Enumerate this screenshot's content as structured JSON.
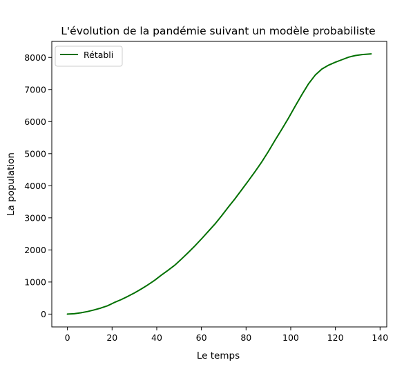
{
  "chart_data": {
    "type": "line",
    "title": "L'évolution de la pandémie suivant un modèle probabiliste",
    "xlabel": "Le temps",
    "ylabel": "La population",
    "xlim": [
      -7,
      143
    ],
    "ylim": [
      -400,
      8500
    ],
    "xticks": [
      0,
      20,
      40,
      60,
      80,
      100,
      120,
      140
    ],
    "yticks": [
      0,
      1000,
      2000,
      3000,
      4000,
      5000,
      6000,
      7000,
      8000
    ],
    "grid": false,
    "legend_position": "upper-left",
    "series": [
      {
        "name": "Rétabli",
        "color": "#007000",
        "x": [
          0,
          3,
          6,
          9,
          12,
          15,
          18,
          21,
          24,
          27,
          30,
          33,
          36,
          39,
          42,
          45,
          48,
          51,
          54,
          57,
          60,
          63,
          66,
          69,
          72,
          75,
          78,
          81,
          84,
          87,
          90,
          93,
          96,
          99,
          102,
          105,
          108,
          111,
          114,
          117,
          120,
          123,
          126,
          129,
          132,
          136
        ],
        "y": [
          0,
          10,
          40,
          80,
          130,
          190,
          260,
          360,
          450,
          550,
          660,
          780,
          910,
          1050,
          1210,
          1360,
          1520,
          1710,
          1910,
          2120,
          2340,
          2570,
          2800,
          3060,
          3330,
          3590,
          3870,
          4150,
          4440,
          4740,
          5070,
          5420,
          5760,
          6110,
          6480,
          6840,
          7180,
          7450,
          7640,
          7760,
          7850,
          7930,
          8010,
          8060,
          8090,
          8110
        ]
      }
    ]
  }
}
